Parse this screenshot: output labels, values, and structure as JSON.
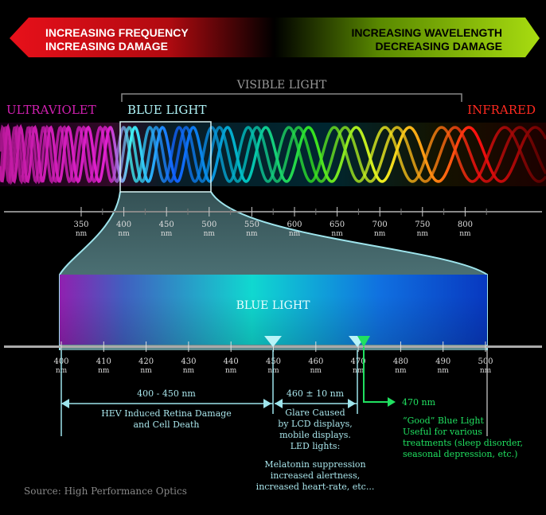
{
  "banner": {
    "left_line1": "INCREASING FREQUENCY",
    "left_line2": "INCREASING DAMAGE",
    "right_line1": "INCREASING WAVELENGTH",
    "right_line2": "DECREASING DAMAGE"
  },
  "spectrum": {
    "visible_label": "VISIBLE LIGHT",
    "uv_label": "ULTRAVIOLET",
    "blue_label": "BLUE LIGHT",
    "ir_label": "INFRARED",
    "ticks": [
      {
        "value": "350",
        "unit": "nm"
      },
      {
        "value": "400",
        "unit": "nm"
      },
      {
        "value": "450",
        "unit": "nm"
      },
      {
        "value": "500",
        "unit": "nm"
      },
      {
        "value": "550",
        "unit": "nm"
      },
      {
        "value": "600",
        "unit": "nm"
      },
      {
        "value": "650",
        "unit": "nm"
      },
      {
        "value": "700",
        "unit": "nm"
      },
      {
        "value": "750",
        "unit": "nm"
      },
      {
        "value": "800",
        "unit": "nm"
      }
    ]
  },
  "zoom": {
    "label": "BLUE LIGHT",
    "ticks": [
      {
        "value": "400",
        "unit": "nm"
      },
      {
        "value": "410",
        "unit": "nm"
      },
      {
        "value": "420",
        "unit": "nm"
      },
      {
        "value": "430",
        "unit": "nm"
      },
      {
        "value": "440",
        "unit": "nm"
      },
      {
        "value": "450",
        "unit": "nm"
      },
      {
        "value": "460",
        "unit": "nm"
      },
      {
        "value": "470",
        "unit": "nm"
      },
      {
        "value": "480",
        "unit": "nm"
      },
      {
        "value": "490",
        "unit": "nm"
      },
      {
        "value": "500",
        "unit": "nm"
      }
    ]
  },
  "annotations": {
    "hev": {
      "range": "400 - 450 nm",
      "line1": "HEV Induced Retina Damage",
      "line2": "and Cell Death"
    },
    "glare": {
      "range": "460 ± 10 nm",
      "line1": "Glare Caused",
      "line2": "by LCD displays,",
      "line3": "mobile displays.",
      "line4": "LED lights:",
      "effect1": "Melatonin suppression",
      "effect2": "increased alertness,",
      "effect3": "increased heart-rate, etc..."
    },
    "good": {
      "range": "470 nm",
      "line1": "“Good” Blue Light",
      "line2": "Useful for various",
      "line3": "treatments (sleep disorder,",
      "line4": "seasonal depression, etc.)"
    }
  },
  "source": "Source: High Performance Optics",
  "colors": {
    "uv": "#e020c0",
    "blue": "#9ff0f0",
    "ir": "#ff2020",
    "good": "#20e060",
    "annotation": "#a8e4ea"
  }
}
